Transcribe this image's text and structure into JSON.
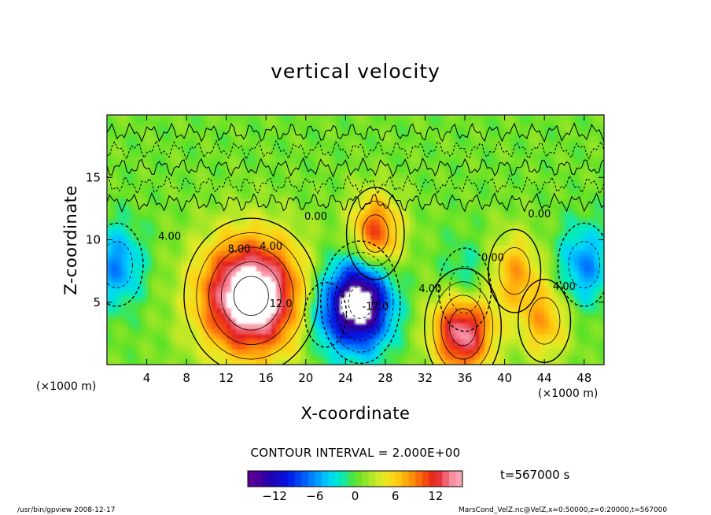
{
  "chart_data": {
    "type": "heatmap",
    "title": "vertical velocity",
    "xlabel": "X-coordinate",
    "ylabel": "Z-coordinate",
    "x_unit_label": "(×1000 m)",
    "x_unit_label_right": "(×1000 m)",
    "x_ticks": [
      "4",
      "8",
      "12",
      "16",
      "20",
      "24",
      "28",
      "32",
      "36",
      "40",
      "44",
      "48"
    ],
    "y_ticks": [
      "5",
      "10",
      "15"
    ],
    "xlim": [
      0,
      50
    ],
    "ylim": [
      0,
      20
    ],
    "contour_labels": [
      {
        "text": "4.00",
        "x": 16.5,
        "y": 9.2
      },
      {
        "text": "8.00",
        "x": 13.3,
        "y": 9.0
      },
      {
        "text": "12.0",
        "x": 17.5,
        "y": 4.6
      },
      {
        "text": "4.00",
        "x": 6.3,
        "y": 10.0
      },
      {
        "text": "4.00",
        "x": 32.5,
        "y": 5.8
      },
      {
        "text": "4.00",
        "x": 46.0,
        "y": 6.0
      },
      {
        "text": "0.00",
        "x": 43.5,
        "y": 11.8
      },
      {
        "text": "0.00",
        "x": 21.0,
        "y": 11.6
      },
      {
        "text": "0.00",
        "x": 38.8,
        "y": 8.3
      },
      {
        "text": "-12.0",
        "x": 27.0,
        "y": 4.4
      }
    ],
    "features": [
      {
        "kind": "updraft",
        "x": 14.5,
        "z": 5.5,
        "value": 14
      },
      {
        "kind": "downdraft",
        "x": 25.5,
        "z": 5.0,
        "value": -14
      },
      {
        "kind": "updraft",
        "x": 35.8,
        "z": 3.0,
        "value": 12
      },
      {
        "kind": "updraft",
        "x": 27.0,
        "z": 10.5,
        "value": 8
      },
      {
        "kind": "updraft",
        "x": 41.0,
        "z": 7.5,
        "value": 5
      },
      {
        "kind": "updraft",
        "x": 44.0,
        "z": 3.5,
        "value": 5
      },
      {
        "kind": "downdraft",
        "x": 36.0,
        "z": 6.0,
        "value": -5
      },
      {
        "kind": "downdraft",
        "x": 48.0,
        "z": 8.0,
        "value": -5
      },
      {
        "kind": "downdraft",
        "x": 1.0,
        "z": 8.0,
        "value": -5
      },
      {
        "kind": "downdraft",
        "x": 22.0,
        "z": 4.0,
        "value": -4
      }
    ],
    "contour_interval_text": "CONTOUR INTERVAL = 2.000E+00",
    "time_text": "t=567000 s",
    "colorbar": {
      "range": [
        -16,
        16
      ],
      "tick_labels": [
        "−12",
        "−6",
        "0",
        "6",
        "12"
      ],
      "tick_values": [
        -12,
        -6,
        0,
        6,
        12
      ]
    },
    "footer_left": "/usr/bin/gpview   2008-12-17",
    "footer_right": "MarsCond_VelZ.nc@VelZ,x=0:50000,z=0:20000,t=567000"
  }
}
